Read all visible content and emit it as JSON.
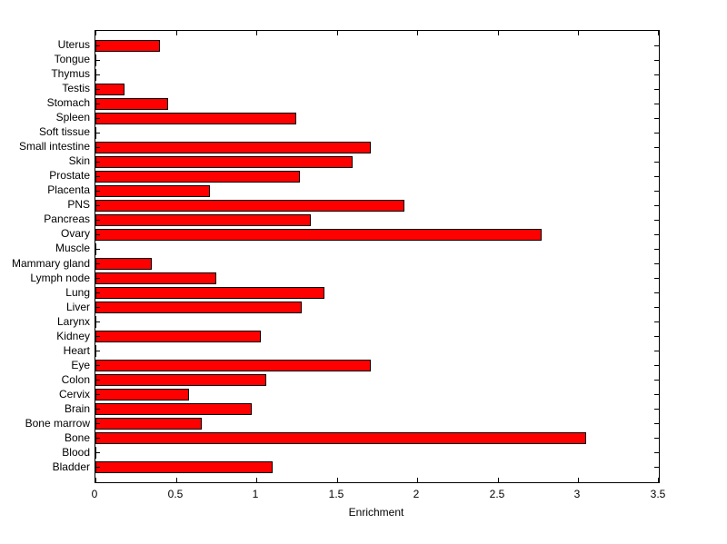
{
  "chart_data": {
    "type": "bar",
    "orientation": "horizontal",
    "title": "",
    "xlabel": "Enrichment",
    "ylabel": "",
    "xlim": [
      0,
      3.5
    ],
    "xticks": [
      0,
      0.5,
      1,
      1.5,
      2,
      2.5,
      3,
      3.5
    ],
    "xtick_labels": [
      "0",
      "0.5",
      "1",
      "1.5",
      "2",
      "2.5",
      "3",
      "3.5"
    ],
    "grid": false,
    "legend": false,
    "bar_color": "#ff0000",
    "bar_edge_color": "#000000",
    "categories_top_to_bottom": [
      "Uterus",
      "Tongue",
      "Thymus",
      "Testis",
      "Stomach",
      "Spleen",
      "Soft tissue",
      "Small intestine",
      "Skin",
      "Prostate",
      "Placenta",
      "PNS",
      "Pancreas",
      "Ovary",
      "Muscle",
      "Mammary gland",
      "Lymph node",
      "Lung",
      "Liver",
      "Larynx",
      "Kidney",
      "Heart",
      "Eye",
      "Colon",
      "Cervix",
      "Brain",
      "Bone marrow",
      "Bone",
      "Blood",
      "Bladder"
    ],
    "values": [
      0.4,
      0,
      0,
      0.18,
      0.45,
      1.25,
      0,
      1.71,
      1.6,
      1.27,
      0.71,
      1.92,
      1.34,
      2.77,
      0,
      0.35,
      0.75,
      1.42,
      1.28,
      0,
      1.03,
      0,
      1.71,
      1.06,
      0.58,
      0.97,
      0.66,
      3.05,
      0,
      1.1
    ]
  }
}
